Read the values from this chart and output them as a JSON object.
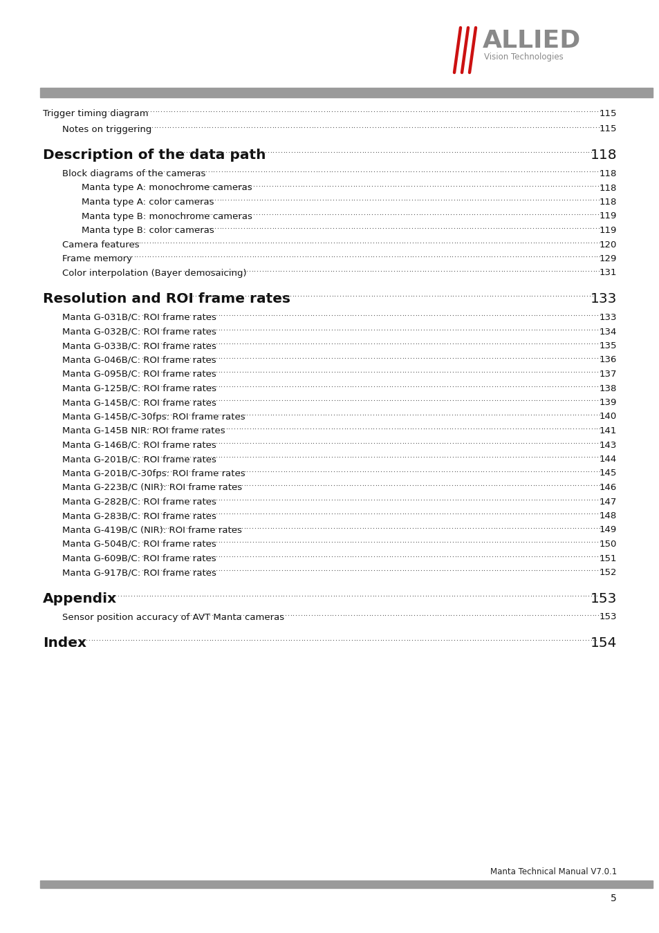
{
  "page_bg": "#ffffff",
  "header_bar_color": "#9a9a9a",
  "footer_bar_color": "#9a9a9a",
  "logo_slashes_color": "#cc1111",
  "logo_text_color": "#898989",
  "footer_text": "Manta Technical Manual V7.0.1",
  "page_number": "5",
  "toc_entries": [
    {
      "text": "Trigger timing diagram",
      "page": "115",
      "indent": 0,
      "bold": false,
      "section_head": false,
      "extra_space_before": false
    },
    {
      "text": "Notes on triggering",
      "page": "115",
      "indent": 1,
      "bold": false,
      "section_head": false,
      "extra_space_before": false
    },
    {
      "text": "Description of the data path",
      "page": "118",
      "indent": 0,
      "bold": true,
      "section_head": true,
      "extra_space_before": true
    },
    {
      "text": "Block diagrams of the cameras",
      "page": "118",
      "indent": 1,
      "bold": false,
      "section_head": false,
      "extra_space_before": false
    },
    {
      "text": "Manta type A: monochrome cameras",
      "page": "118",
      "indent": 2,
      "bold": false,
      "section_head": false,
      "extra_space_before": false
    },
    {
      "text": "Manta type A: color cameras",
      "page": "118",
      "indent": 2,
      "bold": false,
      "section_head": false,
      "extra_space_before": false
    },
    {
      "text": "Manta type B: monochrome cameras",
      "page": "119",
      "indent": 2,
      "bold": false,
      "section_head": false,
      "extra_space_before": false
    },
    {
      "text": "Manta type B: color cameras ",
      "page": "119",
      "indent": 2,
      "bold": false,
      "section_head": false,
      "extra_space_before": false
    },
    {
      "text": "Camera features",
      "page": "120",
      "indent": 1,
      "bold": false,
      "section_head": false,
      "extra_space_before": false
    },
    {
      "text": "Frame memory",
      "page": "129",
      "indent": 1,
      "bold": false,
      "section_head": false,
      "extra_space_before": false
    },
    {
      "text": "Color interpolation (Bayer demosaicing)",
      "page": "131",
      "indent": 1,
      "bold": false,
      "section_head": false,
      "extra_space_before": false
    },
    {
      "text": "Resolution and ROI frame rates",
      "page": "133",
      "indent": 0,
      "bold": true,
      "section_head": true,
      "extra_space_before": true
    },
    {
      "text": "Manta G-031B/C: ROI frame rates",
      "page": "133",
      "indent": 1,
      "bold": false,
      "section_head": false,
      "extra_space_before": false
    },
    {
      "text": "Manta G-032B/C: ROI frame rates",
      "page": "134",
      "indent": 1,
      "bold": false,
      "section_head": false,
      "extra_space_before": false
    },
    {
      "text": "Manta G-033B/C: ROI frame rates",
      "page": "135",
      "indent": 1,
      "bold": false,
      "section_head": false,
      "extra_space_before": false
    },
    {
      "text": "Manta G-046B/C: ROI frame rates",
      "page": "136",
      "indent": 1,
      "bold": false,
      "section_head": false,
      "extra_space_before": false
    },
    {
      "text": "Manta G-095B/C: ROI frame rates",
      "page": "137",
      "indent": 1,
      "bold": false,
      "section_head": false,
      "extra_space_before": false
    },
    {
      "text": "Manta G-125B/C: ROI frame rates",
      "page": "138",
      "indent": 1,
      "bold": false,
      "section_head": false,
      "extra_space_before": false
    },
    {
      "text": "Manta G-145B/C: ROI frame rates",
      "page": "139",
      "indent": 1,
      "bold": false,
      "section_head": false,
      "extra_space_before": false
    },
    {
      "text": "Manta G-145B/C-30fps: ROI frame rates",
      "page": "140",
      "indent": 1,
      "bold": false,
      "section_head": false,
      "extra_space_before": false
    },
    {
      "text": "Manta G-145B NIR: ROI frame rates",
      "page": "141",
      "indent": 1,
      "bold": false,
      "section_head": false,
      "extra_space_before": false
    },
    {
      "text": "Manta G-146B/C: ROI frame rates",
      "page": "143",
      "indent": 1,
      "bold": false,
      "section_head": false,
      "extra_space_before": false
    },
    {
      "text": "Manta G-201B/C: ROI frame rates",
      "page": "144",
      "indent": 1,
      "bold": false,
      "section_head": false,
      "extra_space_before": false
    },
    {
      "text": "Manta G-201B/C-30fps: ROI frame rates",
      "page": "145",
      "indent": 1,
      "bold": false,
      "section_head": false,
      "extra_space_before": false
    },
    {
      "text": "Manta G-223B/C (NIR): ROI frame rates",
      "page": "146",
      "indent": 1,
      "bold": false,
      "section_head": false,
      "extra_space_before": false
    },
    {
      "text": "Manta G-282B/C: ROI frame rates",
      "page": "147",
      "indent": 1,
      "bold": false,
      "section_head": false,
      "extra_space_before": false
    },
    {
      "text": "Manta G-283B/C: ROI frame rates",
      "page": "148",
      "indent": 1,
      "bold": false,
      "section_head": false,
      "extra_space_before": false
    },
    {
      "text": "Manta G-419B/C (NIR): ROI frame rates",
      "page": "149",
      "indent": 1,
      "bold": false,
      "section_head": false,
      "extra_space_before": false
    },
    {
      "text": "Manta G-504B/C: ROI frame rates",
      "page": "150",
      "indent": 1,
      "bold": false,
      "section_head": false,
      "extra_space_before": false
    },
    {
      "text": "Manta G-609B/C: ROI frame rates",
      "page": "151",
      "indent": 1,
      "bold": false,
      "section_head": false,
      "extra_space_before": false
    },
    {
      "text": "Manta G-917B/C: ROI frame rates",
      "page": "152",
      "indent": 1,
      "bold": false,
      "section_head": false,
      "extra_space_before": false
    },
    {
      "text": "Appendix",
      "page": "153",
      "indent": 0,
      "bold": true,
      "section_head": true,
      "extra_space_before": true
    },
    {
      "text": "Sensor position accuracy of AVT Manta cameras",
      "page": "153",
      "indent": 1,
      "bold": false,
      "section_head": false,
      "extra_space_before": false
    },
    {
      "text": "Index",
      "page": "154",
      "indent": 0,
      "bold": true,
      "section_head": true,
      "extra_space_before": true
    }
  ]
}
